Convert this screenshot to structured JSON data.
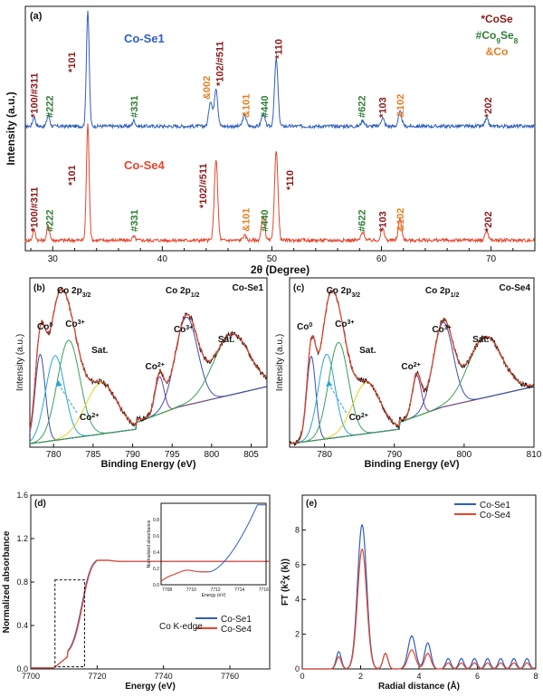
{
  "colors": {
    "blue": "#2f5fbf",
    "red": "#e8452c",
    "dark_red": "#8b1a1a",
    "green": "#2e7d32",
    "orange": "#e67e22",
    "black": "#111111"
  },
  "chart_data": [
    {
      "id": "a",
      "type": "line",
      "panel_label": "(a)",
      "xlabel": "2θ (Degree)",
      "ylabel": "Intensity (a.u.)",
      "xlim": [
        27.5,
        74
      ],
      "xticks": [
        "30",
        "40",
        "50",
        "60",
        "70"
      ],
      "legend": [
        {
          "text": "*CoSe",
          "color": "dark_red"
        },
        {
          "text": "#Co9Se8",
          "color": "green"
        },
        {
          "text": "&Co",
          "color": "orange"
        }
      ],
      "series": [
        {
          "name": "Co-Se1",
          "color": "blue",
          "peaks": [
            [
              28.3,
              0.08
            ],
            [
              29.6,
              0.1
            ],
            [
              33.2,
              1.0
            ],
            [
              37.4,
              0.05
            ],
            [
              44.4,
              0.22
            ],
            [
              44.9,
              0.33
            ],
            [
              47.5,
              0.1
            ],
            [
              49.2,
              0.11
            ],
            [
              50.4,
              0.58
            ],
            [
              58.3,
              0.05
            ],
            [
              60.1,
              0.07
            ],
            [
              61.7,
              0.12
            ],
            [
              69.6,
              0.06
            ]
          ]
        },
        {
          "name": "Co-Se4",
          "color": "red",
          "peaks": [
            [
              28.3,
              0.09
            ],
            [
              29.6,
              0.13
            ],
            [
              33.2,
              1.0
            ],
            [
              37.4,
              0.03
            ],
            [
              44.9,
              0.7
            ],
            [
              47.5,
              0.04
            ],
            [
              49.2,
              0.2
            ],
            [
              50.4,
              0.78
            ],
            [
              58.3,
              0.07
            ],
            [
              60.1,
              0.1
            ],
            [
              61.7,
              0.18
            ],
            [
              69.6,
              0.08
            ]
          ]
        }
      ],
      "annotations": [
        {
          "text": "*100/#311",
          "x": 28.3,
          "s": 0,
          "color": "dark_red"
        },
        {
          "text": "#222",
          "x": 29.7,
          "s": 0,
          "color": "green"
        },
        {
          "text": "*101",
          "x": 31.7,
          "s": 0,
          "color": "dark_red"
        },
        {
          "text": "#331",
          "x": 37.4,
          "s": 0,
          "color": "green"
        },
        {
          "text": "&002",
          "x": 44.0,
          "s": 0,
          "color": "orange"
        },
        {
          "text": "*102/#511",
          "x": 45.2,
          "s": 0,
          "color": "dark_red"
        },
        {
          "text": "&101",
          "x": 47.6,
          "s": 0,
          "color": "orange"
        },
        {
          "text": "#440",
          "x": 49.3,
          "s": 0,
          "color": "green"
        },
        {
          "text": "*110",
          "x": 50.6,
          "s": 0,
          "color": "dark_red"
        },
        {
          "text": "#622",
          "x": 58.2,
          "s": 0,
          "color": "green"
        },
        {
          "text": "*103",
          "x": 60.1,
          "s": 0,
          "color": "dark_red"
        },
        {
          "text": "&102",
          "x": 61.7,
          "s": 0,
          "color": "orange"
        },
        {
          "text": "*202",
          "x": 69.7,
          "s": 0,
          "color": "dark_red"
        },
        {
          "text": "*100/#311",
          "x": 28.3,
          "s": 1,
          "color": "dark_red"
        },
        {
          "text": "#222",
          "x": 29.7,
          "s": 1,
          "color": "green"
        },
        {
          "text": "*101",
          "x": 31.7,
          "s": 1,
          "color": "dark_red"
        },
        {
          "text": "#331",
          "x": 37.4,
          "s": 1,
          "color": "green"
        },
        {
          "text": "*102/#511",
          "x": 43.7,
          "s": 1,
          "color": "dark_red"
        },
        {
          "text": "&101",
          "x": 47.6,
          "s": 1,
          "color": "orange"
        },
        {
          "text": "#440",
          "x": 49.3,
          "s": 1,
          "color": "green"
        },
        {
          "text": "*110",
          "x": 51.6,
          "s": 1,
          "color": "dark_red"
        },
        {
          "text": "#622",
          "x": 58.2,
          "s": 1,
          "color": "green"
        },
        {
          "text": "*103",
          "x": 60.1,
          "s": 1,
          "color": "dark_red"
        },
        {
          "text": "&102",
          "x": 61.7,
          "s": 1,
          "color": "orange"
        },
        {
          "text": "*202",
          "x": 69.7,
          "s": 1,
          "color": "dark_red"
        }
      ]
    },
    {
      "id": "b",
      "type": "line",
      "panel_label": "(b)",
      "title": "Co-Se1",
      "xlabel": "Binding Energy (eV)",
      "ylabel": "Intensity (a.u.)",
      "xlim": [
        777,
        807
      ],
      "xticks": [
        "780",
        "785",
        "790",
        "795",
        "800",
        "805"
      ],
      "peak_labels": [
        "Co 2p3/2",
        "Co 2p1/2",
        "Co0",
        "Co3+",
        "Sat.",
        "Co2+",
        "Co3+",
        "Sat.",
        "Co2+"
      ],
      "components": [
        {
          "name": "Co0",
          "center": 778.3,
          "height": 0.52,
          "width": 0.9,
          "color": "#3a4fb0"
        },
        {
          "name": "Co3+",
          "center": 780.2,
          "height": 0.5,
          "width": 1.7,
          "color": "#2aa5d8"
        },
        {
          "name": "Co2+",
          "center": 781.9,
          "height": 0.58,
          "width": 2.0,
          "color": "#3aa05a"
        },
        {
          "name": "Sat.",
          "center": 786.0,
          "height": 0.3,
          "width": 2.8,
          "color": "#e0d020"
        },
        {
          "name": "Co2+",
          "center": 793.4,
          "height": 0.22,
          "width": 0.8,
          "color": "#7a3fa0"
        },
        {
          "name": "Co3+",
          "center": 796.8,
          "height": 0.52,
          "width": 2.0,
          "color": "#3a4fb0"
        },
        {
          "name": "Sat.",
          "center": 802.5,
          "height": 0.36,
          "width": 3.2,
          "color": "#3aa05a"
        }
      ]
    },
    {
      "id": "c",
      "type": "line",
      "panel_label": "(c)",
      "title": "Co-Se4",
      "xlabel": "Binding Energy (eV)",
      "ylabel": "Intensity (a.u.)",
      "xlim": [
        775,
        810
      ],
      "xticks": [
        "780",
        "790",
        "800",
        "810"
      ],
      "peak_labels": [
        "Co 2p3/2",
        "Co 2p1/2",
        "Co0",
        "Co3+",
        "Sat.",
        "Co2+",
        "Co3+",
        "Sat.",
        "Co2+"
      ],
      "components": [
        {
          "name": "Co0",
          "center": 778.1,
          "height": 0.5,
          "width": 0.9,
          "color": "#3a4fb0"
        },
        {
          "name": "Co3+",
          "center": 780.3,
          "height": 0.5,
          "width": 1.7,
          "color": "#2aa5d8"
        },
        {
          "name": "Co2+",
          "center": 782.0,
          "height": 0.56,
          "width": 2.0,
          "color": "#3aa05a"
        },
        {
          "name": "Sat.",
          "center": 786.0,
          "height": 0.3,
          "width": 2.8,
          "color": "#e0d020"
        },
        {
          "name": "Co2+",
          "center": 793.2,
          "height": 0.24,
          "width": 0.9,
          "color": "#7a3fa0"
        },
        {
          "name": "Co3+",
          "center": 797.0,
          "height": 0.5,
          "width": 2.0,
          "color": "#3a4fb0"
        },
        {
          "name": "Sat.",
          "center": 803.0,
          "height": 0.36,
          "width": 3.4,
          "color": "#3aa05a"
        }
      ]
    },
    {
      "id": "d",
      "type": "line",
      "panel_label": "(d)",
      "xlabel": "Energy (eV)",
      "ylabel": "Normalized absorbance",
      "annotation": "Co K-edge",
      "xlim": [
        7700,
        7772
      ],
      "ylim": [
        0,
        1.6
      ],
      "xticks": [
        "7700",
        "7720",
        "7740",
        "7760"
      ],
      "yticks": [
        "0.0",
        "0.4",
        "0.8",
        "1.2",
        "1.6"
      ],
      "series": [
        {
          "name": "Co-Se1",
          "color": "blue"
        },
        {
          "name": "Co-Se4",
          "color": "red"
        }
      ],
      "inset": {
        "xlabel": "Energy (eV)",
        "ylabel": "Normalized absorbance",
        "xlim": [
          7707.5,
          7716.2
        ],
        "ylim": [
          0,
          1.0
        ],
        "xticks": [
          "7708",
          "7710",
          "7712",
          "7714",
          "7716"
        ],
        "yticks": [
          "0.0",
          "0.2",
          "0.4",
          "0.6",
          "0.8"
        ]
      }
    },
    {
      "id": "e",
      "type": "line",
      "panel_label": "(e)",
      "xlabel": "Radial distance (Å)",
      "ylabel": "FT (k²χ (k))",
      "xlim": [
        0,
        8
      ],
      "ylim": [
        0,
        10
      ],
      "xticks": [
        "0",
        "2",
        "4",
        "6",
        "8"
      ],
      "yticks": [
        "0",
        "2",
        "4",
        "6",
        "8"
      ],
      "series": [
        {
          "name": "Co-Se1",
          "color": "blue",
          "peak_r": 2.05,
          "peak_value": 8.3
        },
        {
          "name": "Co-Se4",
          "color": "red",
          "peak_r": 2.05,
          "peak_value": 6.9
        }
      ]
    }
  ]
}
